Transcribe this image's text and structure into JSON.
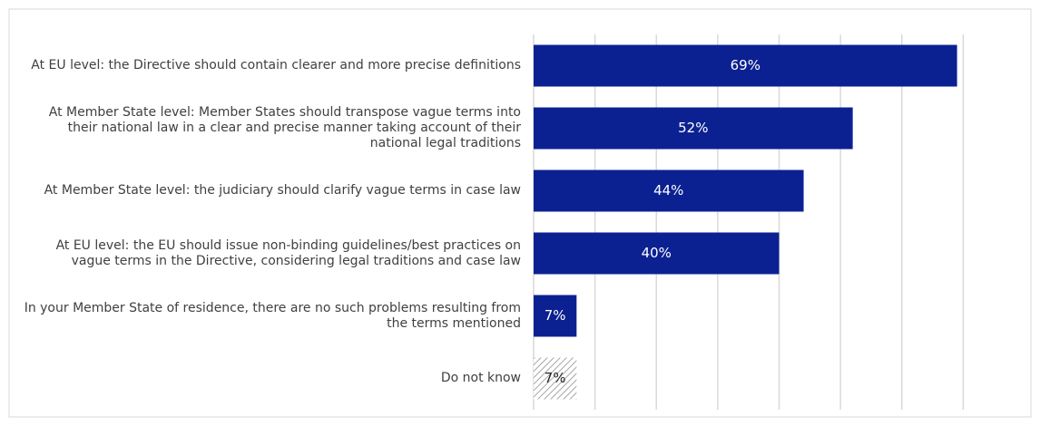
{
  "chart_data": {
    "type": "hbar",
    "categories": [
      "At EU level: the Directive should contain clearer and more precise definitions",
      "At Member State level: Member States should transpose vague terms into their national law in a clear and precise manner taking account of their national legal traditions",
      "At Member State level: the judiciary should clarify vague terms in case law",
      "At EU level: the EU should issue non-binding guidelines/best practices on vague terms in the Directive, considering legal traditions and case law",
      "In your Member State of residence, there are no such problems resulting from the terms mentioned",
      "Do not know"
    ],
    "values": [
      69,
      52,
      44,
      40,
      7,
      7
    ],
    "value_labels": [
      "69%",
      "52%",
      "44%",
      "40%",
      "7%",
      "7%"
    ],
    "colors": [
      "#0b2192",
      "#0b2192",
      "#0b2192",
      "#0b2192",
      "#0b2192",
      "#a6a6a6"
    ],
    "hatched": [
      false,
      false,
      false,
      false,
      false,
      true
    ],
    "xlim": [
      0,
      80
    ],
    "xticks": [
      0,
      10,
      20,
      30,
      40,
      50,
      60,
      70
    ],
    "grid": true
  }
}
